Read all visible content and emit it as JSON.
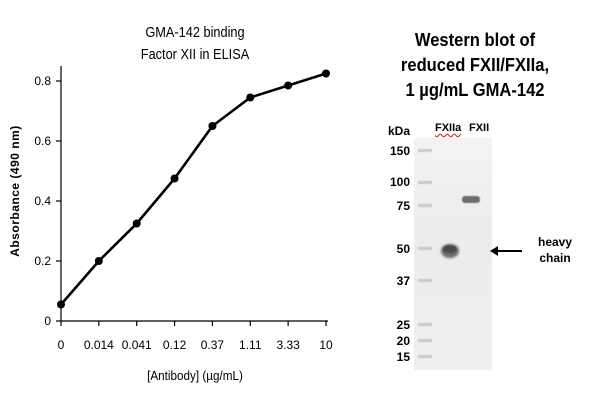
{
  "chart_data": {
    "type": "line",
    "title_lines": [
      "GMA-142 binding",
      "Factor XII in ELISA"
    ],
    "xlabel": "[Antibody] (µg/mL)",
    "ylabel": "Absorbance (490 nm)",
    "categories": [
      "0",
      "0.014",
      "0.041",
      "0.12",
      "0.37",
      "1.11",
      "3.33",
      "10"
    ],
    "values": [
      0.055,
      0.2,
      0.325,
      0.475,
      0.65,
      0.745,
      0.785,
      0.825
    ],
    "ylim": [
      0,
      0.85
    ],
    "yticks": [
      0,
      0.2,
      0.4,
      0.6,
      0.8
    ],
    "ytick_labels": [
      "0",
      "0.2",
      "0.4",
      "0.6",
      "0.8"
    ],
    "grid": false,
    "line_color": "#000000"
  },
  "western_blot": {
    "title_lines": [
      "Western blot of",
      "reduced FXII/FXIIa,",
      "1 µg/mL GMA-142"
    ],
    "unit_label": "kDa",
    "markers": [
      "150",
      "100",
      "75",
      "50",
      "37",
      "25",
      "20",
      "15"
    ],
    "lanes": [
      "FXIIa",
      "FXII"
    ],
    "annotation_lines": [
      "heavy",
      "chain"
    ]
  }
}
